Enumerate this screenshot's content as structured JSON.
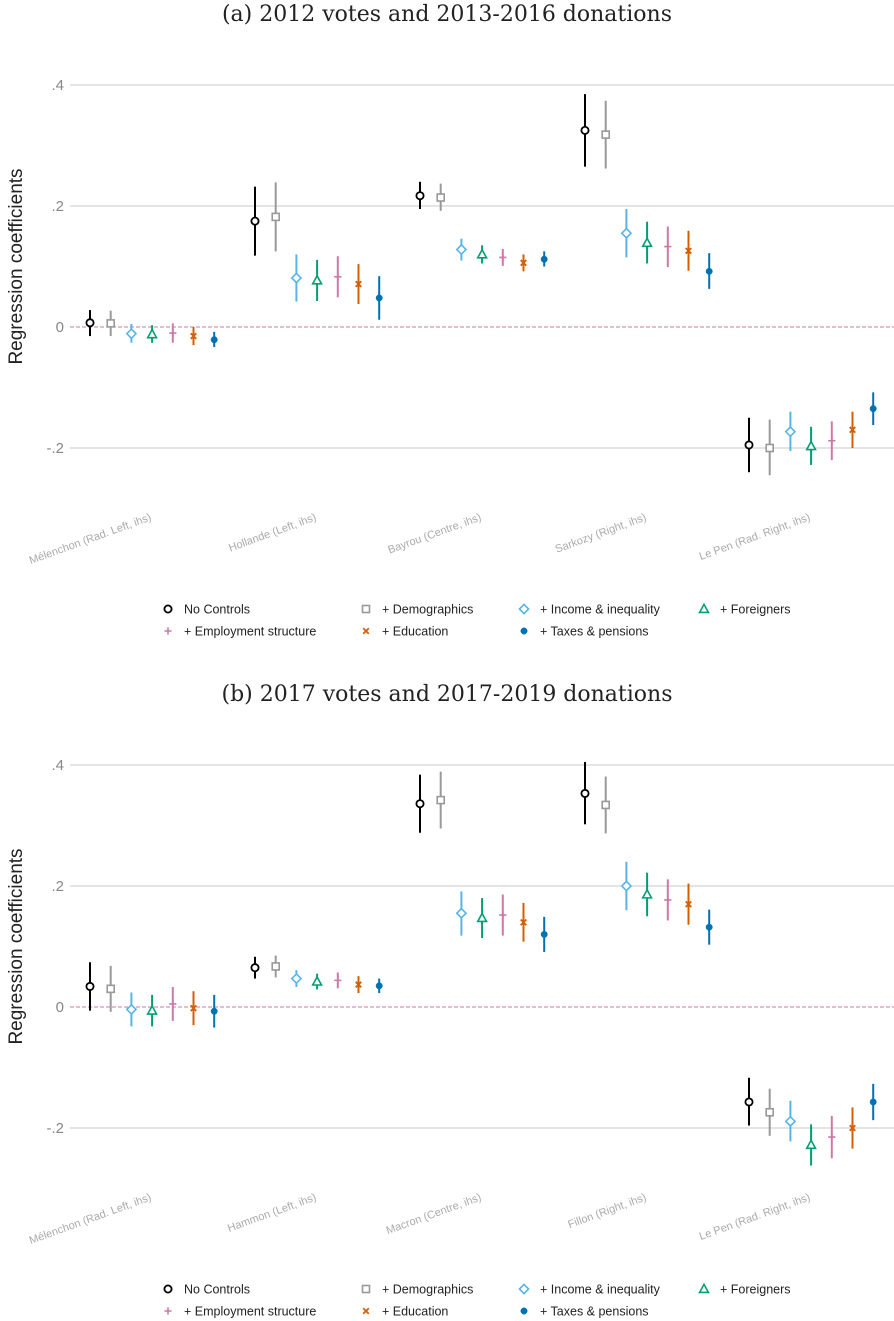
{
  "legend_items": [
    {
      "label": "No Controls",
      "color": "#000000",
      "marker": "circle"
    },
    {
      "label": "+ Demographics",
      "color": "#999999",
      "marker": "square"
    },
    {
      "label": "+ Income & inequality",
      "color": "#56B4E9",
      "marker": "diamond"
    },
    {
      "label": "+ Foreigners",
      "color": "#009E73",
      "marker": "triangle"
    },
    {
      "label": "+ Employment structure",
      "color": "#CC79A7",
      "marker": "plus"
    },
    {
      "label": "+ Education",
      "color": "#D55E00",
      "marker": "x"
    },
    {
      "label": "+ Taxes & pensions",
      "color": "#0072B2",
      "marker": "dot"
    }
  ],
  "chart_data": [
    {
      "type": "scatter",
      "title": "(a) 2012 votes and 2013-2016 donations",
      "ylabel": "Regression coefficients",
      "ylim": [
        -0.28,
        0.44
      ],
      "yticks": [
        0.4,
        0.2,
        0,
        -0.2
      ],
      "ytick_labels": [
        ".4",
        ".2",
        "0",
        "-.2"
      ],
      "reference_line": 0,
      "grid": true,
      "legend_position": "bottom",
      "categories": [
        "Mélenchon (Rad. Left, ihs)",
        "Hollande (Left, ihs)",
        "Bayrou (Centre, ihs)",
        "Sarkozy (Right, ihs)",
        "Le Pen (Rad. Right, ihs)"
      ],
      "series": [
        {
          "name": "No Controls",
          "values": [
            0.007,
            0.175,
            0.217,
            0.325,
            -0.195
          ],
          "ci_low": [
            -0.015,
            0.118,
            0.195,
            0.265,
            -0.24
          ],
          "ci_high": [
            0.028,
            0.232,
            0.24,
            0.385,
            -0.15
          ]
        },
        {
          "name": "+ Demographics",
          "values": [
            0.006,
            0.182,
            0.214,
            0.318,
            -0.2
          ],
          "ci_low": [
            -0.015,
            0.125,
            0.192,
            0.262,
            -0.245
          ],
          "ci_high": [
            0.027,
            0.239,
            0.237,
            0.374,
            -0.153
          ]
        },
        {
          "name": "+ Income & inequality",
          "values": [
            -0.011,
            0.081,
            0.128,
            0.155,
            -0.173
          ],
          "ci_low": [
            -0.026,
            0.042,
            0.11,
            0.115,
            -0.205
          ],
          "ci_high": [
            0.005,
            0.12,
            0.146,
            0.195,
            -0.14
          ]
        },
        {
          "name": "+ Foreigners",
          "values": [
            -0.012,
            0.077,
            0.12,
            0.139,
            -0.197
          ],
          "ci_low": [
            -0.026,
            0.043,
            0.105,
            0.105,
            -0.228
          ],
          "ci_high": [
            0.003,
            0.111,
            0.135,
            0.174,
            -0.165
          ]
        },
        {
          "name": "+ Employment structure",
          "values": [
            -0.01,
            0.083,
            0.115,
            0.133,
            -0.188
          ],
          "ci_low": [
            -0.026,
            0.049,
            0.101,
            0.099,
            -0.22
          ],
          "ci_high": [
            0.006,
            0.117,
            0.129,
            0.166,
            -0.156
          ]
        },
        {
          "name": "+ Education",
          "values": [
            -0.015,
            0.071,
            0.106,
            0.126,
            -0.17
          ],
          "ci_low": [
            -0.03,
            0.038,
            0.092,
            0.093,
            -0.2
          ],
          "ci_high": [
            0.0,
            0.104,
            0.12,
            0.159,
            -0.14
          ]
        },
        {
          "name": "+ Taxes & pensions",
          "values": [
            -0.021,
            0.048,
            0.112,
            0.092,
            -0.135
          ],
          "ci_low": [
            -0.033,
            0.012,
            0.1,
            0.063,
            -0.162
          ],
          "ci_high": [
            -0.008,
            0.084,
            0.125,
            0.122,
            -0.108
          ]
        }
      ]
    },
    {
      "type": "scatter",
      "title": "(b) 2017 votes and 2017-2019 donations",
      "ylabel": "Regression coefficients",
      "ylim": [
        -0.28,
        0.44
      ],
      "yticks": [
        0.4,
        0.2,
        0,
        -0.2
      ],
      "ytick_labels": [
        ".4",
        ".2",
        "0",
        "-.2"
      ],
      "reference_line": 0,
      "grid": true,
      "legend_position": "bottom",
      "categories": [
        "Mélenchon (Rad. Left, ihs)",
        "Hammon (Left, ihs)",
        "Macron (Centre, ihs)",
        "Fillon (Right, ihs)",
        "Le Pen (Rad. Right, ihs)"
      ],
      "series": [
        {
          "name": "No Controls",
          "values": [
            0.034,
            0.065,
            0.336,
            0.353,
            -0.157
          ],
          "ci_low": [
            -0.006,
            0.047,
            0.288,
            0.302,
            -0.196
          ],
          "ci_high": [
            0.074,
            0.083,
            0.384,
            0.405,
            -0.117
          ]
        },
        {
          "name": "+ Demographics",
          "values": [
            0.03,
            0.067,
            0.342,
            0.334,
            -0.174
          ],
          "ci_low": [
            -0.008,
            0.049,
            0.295,
            0.287,
            -0.213
          ],
          "ci_high": [
            0.068,
            0.085,
            0.389,
            0.381,
            -0.135
          ]
        },
        {
          "name": "+ Income & inequality",
          "values": [
            -0.004,
            0.047,
            0.155,
            0.2,
            -0.189
          ],
          "ci_low": [
            -0.032,
            0.033,
            0.118,
            0.16,
            -0.222
          ],
          "ci_high": [
            0.024,
            0.061,
            0.191,
            0.24,
            -0.155
          ]
        },
        {
          "name": "+ Foreigners",
          "values": [
            -0.006,
            0.042,
            0.147,
            0.186,
            -0.228
          ],
          "ci_low": [
            -0.032,
            0.029,
            0.114,
            0.15,
            -0.262
          ],
          "ci_high": [
            0.02,
            0.055,
            0.18,
            0.222,
            -0.194
          ]
        },
        {
          "name": "+ Employment structure",
          "values": [
            0.005,
            0.044,
            0.152,
            0.177,
            -0.215
          ],
          "ci_low": [
            -0.023,
            0.031,
            0.118,
            0.143,
            -0.25
          ],
          "ci_high": [
            0.033,
            0.057,
            0.186,
            0.211,
            -0.18
          ]
        },
        {
          "name": "+ Education",
          "values": [
            -0.002,
            0.037,
            0.14,
            0.17,
            -0.2
          ],
          "ci_low": [
            -0.03,
            0.023,
            0.108,
            0.136,
            -0.234
          ],
          "ci_high": [
            0.026,
            0.051,
            0.172,
            0.204,
            -0.166
          ]
        },
        {
          "name": "+ Taxes & pensions",
          "values": [
            -0.007,
            0.035,
            0.12,
            0.132,
            -0.157
          ],
          "ci_low": [
            -0.034,
            0.023,
            0.091,
            0.103,
            -0.187
          ],
          "ci_high": [
            0.02,
            0.047,
            0.149,
            0.161,
            -0.127
          ]
        }
      ]
    }
  ]
}
